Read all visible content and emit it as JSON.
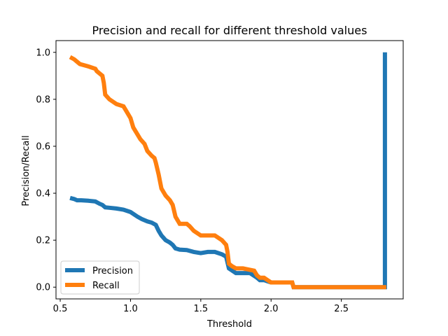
{
  "chart_data": {
    "type": "line",
    "title": "Precision and recall for different threshold values",
    "xlabel": "Threshold",
    "ylabel": "Precision/Recall",
    "xlim": [
      0.47,
      2.94
    ],
    "ylim": [
      -0.05,
      1.05
    ],
    "xticks": [
      0.5,
      1.0,
      1.5,
      2.0,
      2.5
    ],
    "xtick_labels": [
      "0.5",
      "1.0",
      "1.5",
      "2.0",
      "2.5"
    ],
    "yticks": [
      0.0,
      0.2,
      0.4,
      0.6,
      0.8,
      1.0
    ],
    "ytick_labels": [
      "0.0",
      "0.2",
      "0.4",
      "0.6",
      "0.8",
      "1.0"
    ],
    "grid": false,
    "legend_position": "lower-left",
    "series": [
      {
        "name": "Precision",
        "color": "#1f77b4",
        "x": [
          0.57,
          0.6,
          0.62,
          0.65,
          0.7,
          0.75,
          0.78,
          0.8,
          0.82,
          0.85,
          0.9,
          0.95,
          1.0,
          1.05,
          1.08,
          1.12,
          1.15,
          1.18,
          1.2,
          1.22,
          1.25,
          1.28,
          1.3,
          1.32,
          1.35,
          1.4,
          1.45,
          1.5,
          1.55,
          1.6,
          1.65,
          1.68,
          1.7,
          1.75,
          1.8,
          1.85,
          1.9,
          1.92,
          1.95,
          2.0,
          2.05,
          2.1,
          2.15,
          2.16,
          2.5,
          2.8,
          2.81,
          2.81
        ],
        "y": [
          0.38,
          0.375,
          0.37,
          0.37,
          0.368,
          0.365,
          0.355,
          0.35,
          0.34,
          0.338,
          0.335,
          0.33,
          0.32,
          0.3,
          0.29,
          0.28,
          0.275,
          0.265,
          0.24,
          0.22,
          0.2,
          0.19,
          0.18,
          0.165,
          0.16,
          0.158,
          0.15,
          0.145,
          0.15,
          0.15,
          0.14,
          0.13,
          0.08,
          0.06,
          0.06,
          0.06,
          0.04,
          0.03,
          0.03,
          0.02,
          0.02,
          0.02,
          0.02,
          0.0,
          0.0,
          0.0,
          0.0,
          1.0
        ]
      },
      {
        "name": "Recall",
        "color": "#ff7f0e",
        "x": [
          0.57,
          0.6,
          0.62,
          0.64,
          0.7,
          0.75,
          0.76,
          0.8,
          0.81,
          0.82,
          0.85,
          0.9,
          0.95,
          0.97,
          1.0,
          1.02,
          1.05,
          1.07,
          1.1,
          1.12,
          1.15,
          1.17,
          1.18,
          1.2,
          1.22,
          1.25,
          1.28,
          1.3,
          1.32,
          1.35,
          1.4,
          1.42,
          1.45,
          1.5,
          1.55,
          1.6,
          1.65,
          1.68,
          1.69,
          1.7,
          1.72,
          1.75,
          1.8,
          1.88,
          1.9,
          1.92,
          1.95,
          2.0,
          2.05,
          2.1,
          2.15,
          2.16,
          2.5,
          2.8,
          2.82
        ],
        "y": [
          0.98,
          0.97,
          0.96,
          0.95,
          0.94,
          0.93,
          0.92,
          0.9,
          0.87,
          0.82,
          0.8,
          0.78,
          0.77,
          0.75,
          0.72,
          0.68,
          0.65,
          0.63,
          0.61,
          0.58,
          0.56,
          0.55,
          0.53,
          0.48,
          0.42,
          0.39,
          0.37,
          0.35,
          0.3,
          0.27,
          0.27,
          0.26,
          0.24,
          0.22,
          0.22,
          0.22,
          0.2,
          0.18,
          0.15,
          0.1,
          0.09,
          0.08,
          0.08,
          0.07,
          0.05,
          0.04,
          0.04,
          0.02,
          0.02,
          0.02,
          0.02,
          0.0,
          0.0,
          0.0,
          0.0
        ]
      }
    ]
  }
}
